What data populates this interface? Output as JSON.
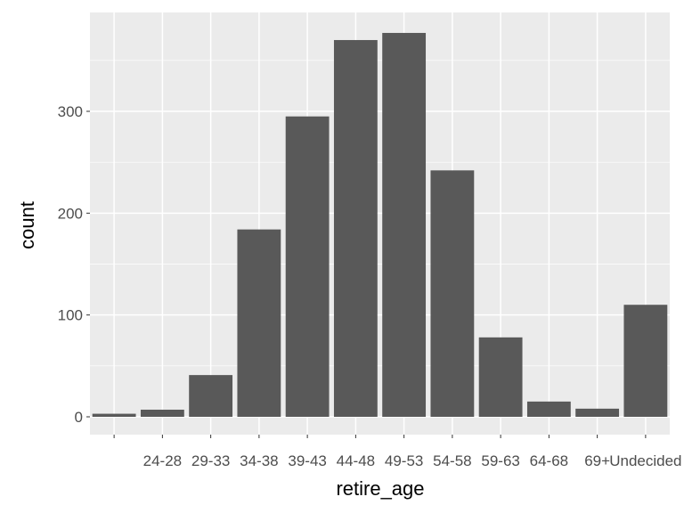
{
  "chart_data": {
    "type": "bar",
    "xlabel": "retire_age",
    "ylabel": "count",
    "categories": [
      "",
      "24-28",
      "29-33",
      "34-38",
      "39-43",
      "44-48",
      "49-53",
      "54-58",
      "59-63",
      "64-68",
      "69+",
      "Undecided"
    ],
    "values": [
      3,
      7,
      41,
      184,
      295,
      370,
      377,
      242,
      78,
      15,
      8,
      110
    ],
    "ylim": [
      0,
      395
    ],
    "yticks": [
      0,
      100,
      200,
      300
    ],
    "grid": true,
    "colors": {
      "bar": "#595959",
      "panel": "#ebebeb",
      "grid_major": "#ffffff",
      "tick_text": "#4d4d4d",
      "axis_title": "#000000"
    }
  }
}
